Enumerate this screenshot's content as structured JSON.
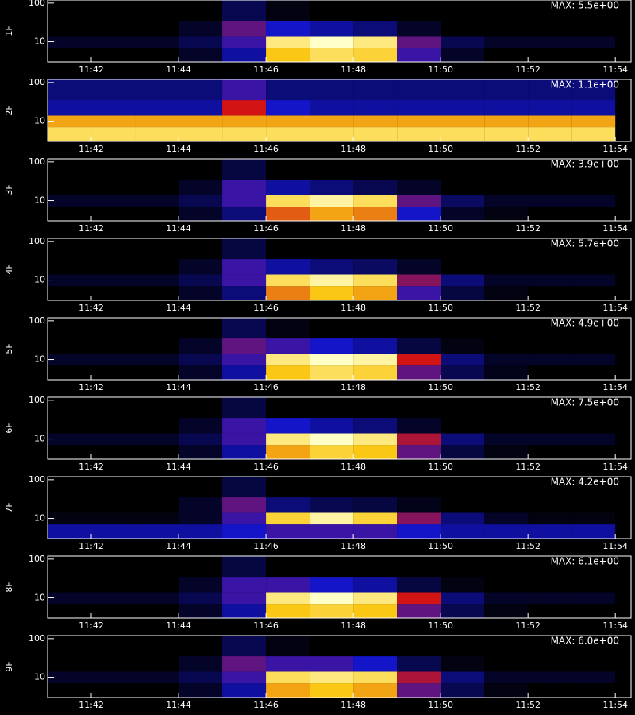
{
  "chart_data": [
    {
      "type": "heatmap",
      "ylabel": "1F",
      "max_label": "MAX: 5.5e+00",
      "log_y": true,
      "xlim": [
        41,
        54.36
      ],
      "xticks": [
        {
          "value": 42,
          "label": "11:42"
        },
        {
          "value": 44,
          "label": "11:44"
        },
        {
          "value": 46,
          "label": "11:46"
        },
        {
          "value": 48,
          "label": "11:48"
        },
        {
          "value": 50,
          "label": "11:50"
        },
        {
          "value": 52,
          "label": "11:52"
        },
        {
          "value": 54,
          "label": "11:54"
        }
      ],
      "ylim": [
        3,
        120
      ],
      "yticks": [
        10,
        100
      ],
      "xbins": [
        41,
        42,
        43,
        44,
        45,
        46,
        47,
        48,
        49,
        50,
        51,
        52,
        53,
        54
      ],
      "ybins": [
        3,
        7,
        14,
        35,
        120
      ],
      "values": [
        [
          0,
          0,
          0,
          0.05,
          0.2,
          0.75,
          0.85,
          0.8,
          0.3,
          0.05,
          0,
          0,
          0
        ],
        [
          0.05,
          0.05,
          0.05,
          0.1,
          0.3,
          0.9,
          1,
          0.9,
          0.35,
          0.1,
          0.05,
          0.05,
          0.05
        ],
        [
          0,
          0,
          0,
          0.05,
          0.35,
          0.25,
          0.2,
          0.15,
          0.05,
          0,
          0,
          0,
          0
        ],
        [
          0,
          0,
          0,
          0,
          0.1,
          0.02,
          0,
          0,
          0,
          0,
          0,
          0,
          0
        ]
      ]
    },
    {
      "type": "heatmap",
      "ylabel": "2F",
      "max_label": "MAX: 1.1e+00",
      "log_y": true,
      "xlim": [
        41,
        54.36
      ],
      "xticks": [
        {
          "value": 42,
          "label": "11:42"
        },
        {
          "value": 44,
          "label": "11:44"
        },
        {
          "value": 46,
          "label": "11:46"
        },
        {
          "value": 48,
          "label": "11:48"
        },
        {
          "value": 50,
          "label": "11:50"
        },
        {
          "value": 52,
          "label": "11:52"
        },
        {
          "value": 54,
          "label": "11:54"
        }
      ],
      "ylim": [
        3,
        120
      ],
      "yticks": [
        10,
        100
      ],
      "xbins": [
        41,
        42,
        43,
        44,
        45,
        46,
        47,
        48,
        49,
        50,
        51,
        52,
        53,
        54
      ],
      "ybins": [
        3,
        7,
        14,
        35,
        120
      ],
      "values": [
        [
          0.85,
          0.85,
          0.85,
          0.85,
          0.85,
          0.85,
          0.85,
          0.85,
          0.85,
          0.85,
          0.85,
          0.85,
          0.85
        ],
        [
          0.7,
          0.7,
          0.7,
          0.7,
          0.7,
          0.7,
          0.7,
          0.7,
          0.7,
          0.7,
          0.7,
          0.7,
          0.7
        ],
        [
          0.2,
          0.2,
          0.2,
          0.2,
          0.5,
          0.25,
          0.2,
          0.2,
          0.2,
          0.2,
          0.2,
          0.2,
          0.2
        ],
        [
          0.15,
          0.15,
          0.15,
          0.15,
          0.3,
          0.15,
          0.15,
          0.15,
          0.15,
          0.15,
          0.15,
          0.15,
          0.15
        ]
      ]
    },
    {
      "type": "heatmap",
      "ylabel": "3F",
      "max_label": "MAX: 3.9e+00",
      "log_y": true,
      "xlim": [
        41,
        54.36
      ],
      "xticks": [
        {
          "value": 42,
          "label": "11:42"
        },
        {
          "value": 44,
          "label": "11:44"
        },
        {
          "value": 46,
          "label": "11:46"
        },
        {
          "value": 48,
          "label": "11:48"
        },
        {
          "value": 50,
          "label": "11:50"
        },
        {
          "value": 52,
          "label": "11:52"
        },
        {
          "value": 54,
          "label": "11:54"
        }
      ],
      "ylim": [
        3,
        120
      ],
      "yticks": [
        10,
        100
      ],
      "xbins": [
        41,
        42,
        43,
        44,
        45,
        46,
        47,
        48,
        49,
        50,
        51,
        52,
        53,
        54
      ],
      "ybins": [
        3,
        7,
        14,
        35,
        120
      ],
      "values": [
        [
          0,
          0,
          0,
          0.05,
          0.15,
          0.6,
          0.7,
          0.65,
          0.25,
          0.05,
          0.02,
          0,
          0
        ],
        [
          0.05,
          0.05,
          0.05,
          0.1,
          0.3,
          0.85,
          0.95,
          0.85,
          0.35,
          0.12,
          0.05,
          0.05,
          0.05
        ],
        [
          0,
          0,
          0,
          0.05,
          0.3,
          0.2,
          0.15,
          0.1,
          0.05,
          0,
          0,
          0,
          0
        ],
        [
          0,
          0,
          0,
          0,
          0.08,
          0,
          0,
          0,
          0,
          0,
          0,
          0,
          0
        ]
      ]
    },
    {
      "type": "heatmap",
      "ylabel": "4F",
      "max_label": "MAX: 5.7e+00",
      "log_y": true,
      "xlim": [
        41,
        54.36
      ],
      "xticks": [
        {
          "value": 42,
          "label": "11:42"
        },
        {
          "value": 44,
          "label": "11:44"
        },
        {
          "value": 46,
          "label": "11:46"
        },
        {
          "value": 48,
          "label": "11:48"
        },
        {
          "value": 50,
          "label": "11:50"
        },
        {
          "value": 52,
          "label": "11:52"
        },
        {
          "value": 54,
          "label": "11:54"
        }
      ],
      "ylim": [
        3,
        120
      ],
      "yticks": [
        10,
        100
      ],
      "xbins": [
        41,
        42,
        43,
        44,
        45,
        46,
        47,
        48,
        49,
        50,
        51,
        52,
        53,
        54
      ],
      "ybins": [
        3,
        7,
        14,
        35,
        120
      ],
      "values": [
        [
          0,
          0,
          0,
          0.05,
          0.15,
          0.65,
          0.75,
          0.7,
          0.3,
          0.08,
          0.02,
          0,
          0
        ],
        [
          0.05,
          0.05,
          0.05,
          0.1,
          0.3,
          0.85,
          0.95,
          0.85,
          0.4,
          0.15,
          0.05,
          0.05,
          0.05
        ],
        [
          0,
          0,
          0,
          0.05,
          0.3,
          0.2,
          0.15,
          0.12,
          0.05,
          0,
          0,
          0,
          0
        ],
        [
          0,
          0,
          0,
          0,
          0.08,
          0,
          0,
          0,
          0,
          0,
          0,
          0,
          0
        ]
      ]
    },
    {
      "type": "heatmap",
      "ylabel": "5F",
      "max_label": "MAX: 4.9e+00",
      "log_y": true,
      "xlim": [
        41,
        54.36
      ],
      "xticks": [
        {
          "value": 42,
          "label": "11:42"
        },
        {
          "value": 44,
          "label": "11:44"
        },
        {
          "value": 46,
          "label": "11:46"
        },
        {
          "value": 48,
          "label": "11:48"
        },
        {
          "value": 50,
          "label": "11:50"
        },
        {
          "value": 52,
          "label": "11:52"
        },
        {
          "value": 54,
          "label": "11:54"
        }
      ],
      "ylim": [
        3,
        120
      ],
      "yticks": [
        10,
        100
      ],
      "xbins": [
        41,
        42,
        43,
        44,
        45,
        46,
        47,
        48,
        49,
        50,
        51,
        52,
        53,
        54
      ],
      "ybins": [
        3,
        7,
        14,
        35,
        120
      ],
      "values": [
        [
          0,
          0,
          0,
          0.05,
          0.2,
          0.75,
          0.85,
          0.8,
          0.35,
          0.1,
          0.03,
          0,
          0
        ],
        [
          0.05,
          0.05,
          0.05,
          0.1,
          0.3,
          0.9,
          1,
          0.95,
          0.5,
          0.15,
          0.05,
          0.05,
          0.05
        ],
        [
          0,
          0,
          0,
          0.05,
          0.35,
          0.3,
          0.25,
          0.2,
          0.08,
          0.02,
          0,
          0,
          0
        ],
        [
          0,
          0,
          0,
          0,
          0.1,
          0.02,
          0,
          0,
          0,
          0,
          0,
          0,
          0
        ]
      ]
    },
    {
      "type": "heatmap",
      "ylabel": "6F",
      "max_label": "MAX: 7.5e+00",
      "log_y": true,
      "xlim": [
        41,
        54.36
      ],
      "xticks": [
        {
          "value": 42,
          "label": "11:42"
        },
        {
          "value": 44,
          "label": "11:44"
        },
        {
          "value": 46,
          "label": "11:46"
        },
        {
          "value": 48,
          "label": "11:48"
        },
        {
          "value": 50,
          "label": "11:50"
        },
        {
          "value": 52,
          "label": "11:52"
        },
        {
          "value": 54,
          "label": "11:54"
        }
      ],
      "ylim": [
        3,
        120
      ],
      "yticks": [
        10,
        100
      ],
      "xbins": [
        41,
        42,
        43,
        44,
        45,
        46,
        47,
        48,
        49,
        50,
        51,
        52,
        53,
        54
      ],
      "ybins": [
        3,
        7,
        14,
        35,
        120
      ],
      "values": [
        [
          0,
          0,
          0,
          0.05,
          0.2,
          0.7,
          0.8,
          0.75,
          0.35,
          0.08,
          0.02,
          0,
          0
        ],
        [
          0.05,
          0.05,
          0.05,
          0.1,
          0.3,
          0.9,
          1,
          0.9,
          0.45,
          0.15,
          0.05,
          0.05,
          0.05
        ],
        [
          0,
          0,
          0,
          0.05,
          0.3,
          0.25,
          0.2,
          0.15,
          0.05,
          0,
          0,
          0,
          0
        ],
        [
          0,
          0,
          0,
          0,
          0.08,
          0,
          0,
          0,
          0,
          0,
          0,
          0,
          0
        ]
      ]
    },
    {
      "type": "heatmap",
      "ylabel": "7F",
      "max_label": "MAX: 4.2e+00",
      "log_y": true,
      "xlim": [
        41,
        54.36
      ],
      "xticks": [
        {
          "value": 42,
          "label": "11:42"
        },
        {
          "value": 44,
          "label": "11:44"
        },
        {
          "value": 46,
          "label": "11:46"
        },
        {
          "value": 48,
          "label": "11:48"
        },
        {
          "value": 50,
          "label": "11:50"
        },
        {
          "value": 52,
          "label": "11:52"
        },
        {
          "value": 54,
          "label": "11:54"
        }
      ],
      "ylim": [
        3,
        120
      ],
      "yticks": [
        10,
        100
      ],
      "xbins": [
        41,
        42,
        43,
        44,
        45,
        46,
        47,
        48,
        49,
        50,
        51,
        52,
        53,
        54
      ],
      "ybins": [
        3,
        7,
        14,
        35,
        120
      ],
      "values": [
        [
          0.2,
          0.2,
          0.2,
          0.2,
          0.25,
          0.3,
          0.3,
          0.3,
          0.25,
          0.2,
          0.2,
          0.2,
          0.2
        ],
        [
          0.02,
          0.02,
          0.02,
          0.05,
          0.3,
          0.8,
          0.95,
          0.8,
          0.4,
          0.15,
          0.05,
          0.02,
          0.02
        ],
        [
          0,
          0,
          0,
          0.05,
          0.35,
          0.15,
          0.1,
          0.08,
          0.03,
          0,
          0,
          0,
          0
        ],
        [
          0,
          0,
          0,
          0,
          0.08,
          0,
          0,
          0,
          0,
          0,
          0,
          0,
          0
        ]
      ]
    },
    {
      "type": "heatmap",
      "ylabel": "8F",
      "max_label": "MAX: 6.1e+00",
      "log_y": true,
      "xlim": [
        41,
        54.36
      ],
      "xticks": [
        {
          "value": 42,
          "label": "11:42"
        },
        {
          "value": 44,
          "label": "11:44"
        },
        {
          "value": 46,
          "label": "11:46"
        },
        {
          "value": 48,
          "label": "11:48"
        },
        {
          "value": 50,
          "label": "11:50"
        },
        {
          "value": 52,
          "label": "11:52"
        },
        {
          "value": 54,
          "label": "11:54"
        }
      ],
      "ylim": [
        3,
        120
      ],
      "yticks": [
        10,
        100
      ],
      "xbins": [
        41,
        42,
        43,
        44,
        45,
        46,
        47,
        48,
        49,
        50,
        51,
        52,
        53,
        54
      ],
      "ybins": [
        3,
        7,
        14,
        35,
        120
      ],
      "values": [
        [
          0,
          0,
          0,
          0.05,
          0.2,
          0.75,
          0.8,
          0.75,
          0.35,
          0.1,
          0.02,
          0,
          0
        ],
        [
          0.05,
          0.05,
          0.05,
          0.1,
          0.3,
          0.9,
          1,
          0.9,
          0.5,
          0.15,
          0.05,
          0.05,
          0.05
        ],
        [
          0,
          0,
          0,
          0.05,
          0.3,
          0.3,
          0.25,
          0.2,
          0.08,
          0.02,
          0,
          0,
          0
        ],
        [
          0,
          0,
          0,
          0,
          0.08,
          0,
          0,
          0,
          0,
          0,
          0,
          0,
          0
        ]
      ]
    },
    {
      "type": "heatmap",
      "ylabel": "9F",
      "max_label": "MAX: 6.0e+00",
      "log_y": true,
      "xlim": [
        41,
        54.36
      ],
      "xticks": [
        {
          "value": 42,
          "label": "11:42"
        },
        {
          "value": 44,
          "label": "11:44"
        },
        {
          "value": 46,
          "label": "11:46"
        },
        {
          "value": 48,
          "label": "11:48"
        },
        {
          "value": 50,
          "label": "11:50"
        },
        {
          "value": 52,
          "label": "11:52"
        },
        {
          "value": 54,
          "label": "11:54"
        }
      ],
      "ylim": [
        3,
        120
      ],
      "yticks": [
        10,
        100
      ],
      "xbins": [
        41,
        42,
        43,
        44,
        45,
        46,
        47,
        48,
        49,
        50,
        51,
        52,
        53,
        54
      ],
      "ybins": [
        3,
        7,
        14,
        35,
        120
      ],
      "values": [
        [
          0,
          0,
          0,
          0.05,
          0.2,
          0.7,
          0.75,
          0.7,
          0.35,
          0.1,
          0.02,
          0,
          0
        ],
        [
          0.05,
          0.05,
          0.05,
          0.1,
          0.3,
          0.85,
          0.9,
          0.85,
          0.45,
          0.15,
          0.05,
          0.05,
          0.05
        ],
        [
          0,
          0,
          0,
          0.05,
          0.35,
          0.3,
          0.3,
          0.25,
          0.1,
          0.02,
          0,
          0,
          0
        ],
        [
          0,
          0,
          0,
          0,
          0.1,
          0.02,
          0,
          0,
          0,
          0,
          0,
          0,
          0
        ]
      ]
    }
  ]
}
